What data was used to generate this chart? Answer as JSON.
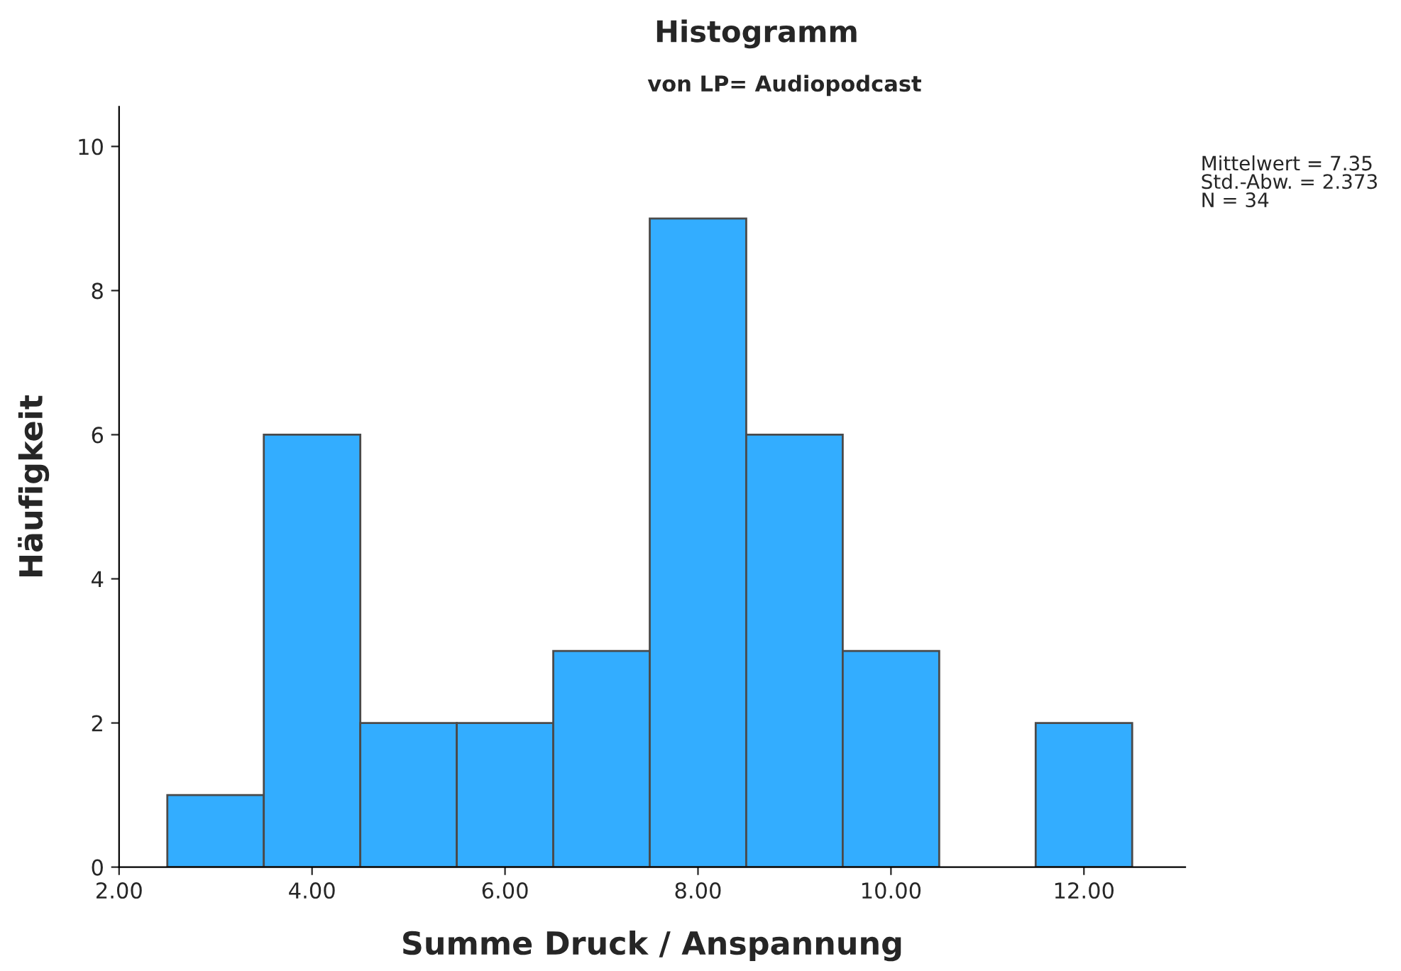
{
  "chart_data": {
    "type": "histogram",
    "title": "Histogramm",
    "subtitle": "von LP= Audiopodcast",
    "xlabel": "Summe Druck / Anspannung",
    "ylabel": "Häufigkeit",
    "bins": [
      2.5,
      3.5,
      4.5,
      5.5,
      6.5,
      7.5,
      8.5,
      9.5,
      10.5,
      11.5,
      12.5
    ],
    "values": [
      1,
      6,
      2,
      2,
      3,
      9,
      6,
      3,
      0,
      2
    ],
    "color": "#33adff",
    "xlim": [
      2.0,
      13.05
    ],
    "ylim": [
      0,
      10.55
    ],
    "xticks": [
      {
        "value": 2,
        "label": "2.00"
      },
      {
        "value": 4,
        "label": "4.00"
      },
      {
        "value": 6,
        "label": "6.00"
      },
      {
        "value": 8,
        "label": "8.00"
      },
      {
        "value": 10,
        "label": "10.00"
      },
      {
        "value": 12,
        "label": "12.00"
      }
    ],
    "yticks": [
      0,
      2,
      4,
      6,
      8,
      10
    ],
    "annotations": [
      "Mittelwert = 7.35\nStd.-Abw. = 2.373\nN = 34"
    ],
    "grid": false,
    "legend": false
  }
}
